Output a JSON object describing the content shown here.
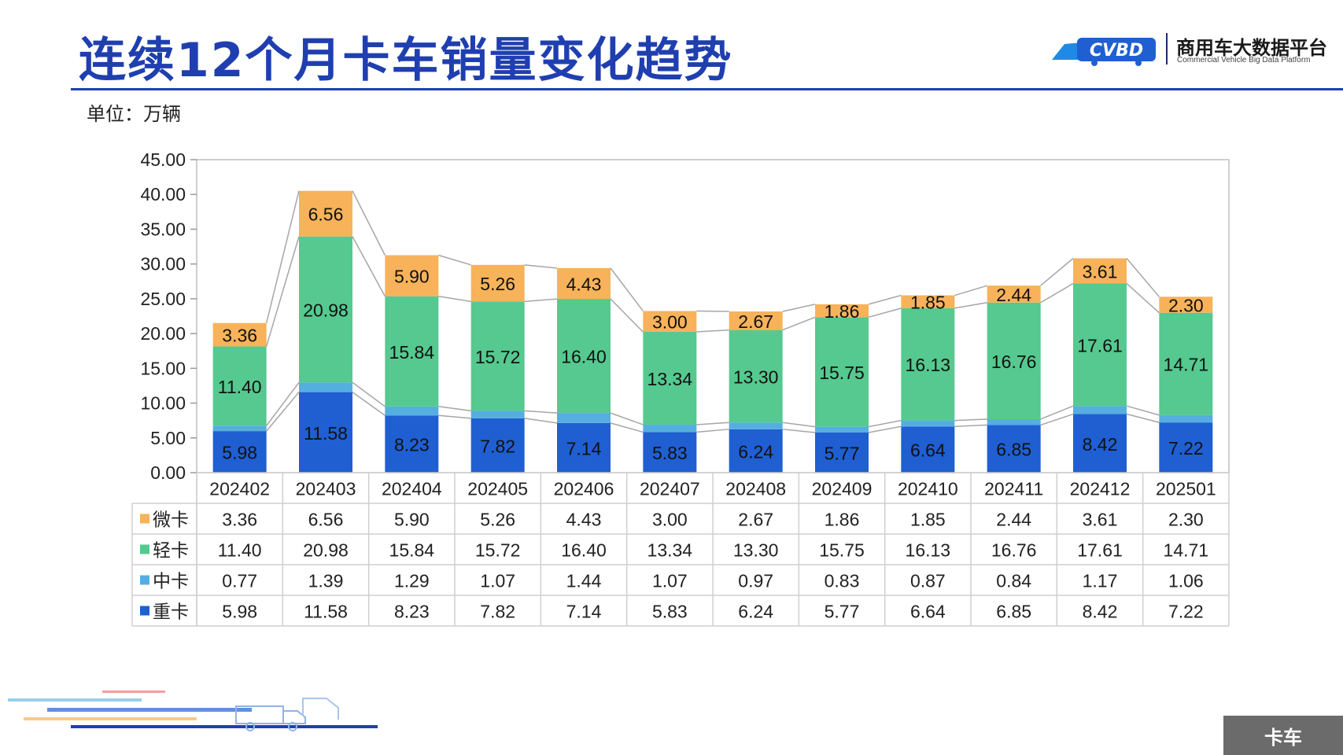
{
  "page": {
    "title": "连续12个月卡车销量变化趋势",
    "unit_label": "单位：万辆",
    "logo_cn": "商用车大数据平台",
    "logo_en": "Commercial Vehicle Big Data Platform",
    "footer_tag": "卡车"
  },
  "colors": {
    "title": "#1f3fb0",
    "heavy": "#1f5fd1",
    "medium": "#55aee0",
    "light": "#55c98f",
    "mini": "#f7b25a",
    "footer": "#6b6b6b"
  },
  "chart_data": {
    "type": "bar",
    "stacked": true,
    "title": "",
    "ylabel": "",
    "ylim": [
      0,
      45
    ],
    "yticks": [
      "0.00",
      "5.00",
      "10.00",
      "15.00",
      "20.00",
      "25.00",
      "30.00",
      "35.00",
      "40.00",
      "45.00"
    ],
    "gridlines": false,
    "categories": [
      "202402",
      "202403",
      "202404",
      "202405",
      "202406",
      "202407",
      "202408",
      "202409",
      "202410",
      "202411",
      "202412",
      "202501"
    ],
    "series": [
      {
        "name": "重卡",
        "values": [
          5.98,
          11.58,
          8.23,
          7.82,
          7.14,
          5.83,
          6.24,
          5.77,
          6.64,
          6.85,
          8.42,
          7.22
        ]
      },
      {
        "name": "中卡",
        "values": [
          0.77,
          1.39,
          1.29,
          1.07,
          1.44,
          1.07,
          0.97,
          0.83,
          0.87,
          0.84,
          1.17,
          1.06
        ]
      },
      {
        "name": "轻卡",
        "values": [
          11.4,
          20.98,
          15.84,
          15.72,
          16.4,
          13.34,
          13.3,
          15.75,
          16.13,
          16.76,
          17.61,
          14.71
        ]
      },
      {
        "name": "微卡",
        "values": [
          3.36,
          6.56,
          5.9,
          5.26,
          4.43,
          3.0,
          2.67,
          1.86,
          1.85,
          2.44,
          3.61,
          2.3
        ]
      }
    ],
    "labeled_series": [
      "重卡",
      "轻卡",
      "微卡"
    ],
    "table_row_order": [
      "微卡",
      "轻卡",
      "中卡",
      "重卡"
    ]
  }
}
